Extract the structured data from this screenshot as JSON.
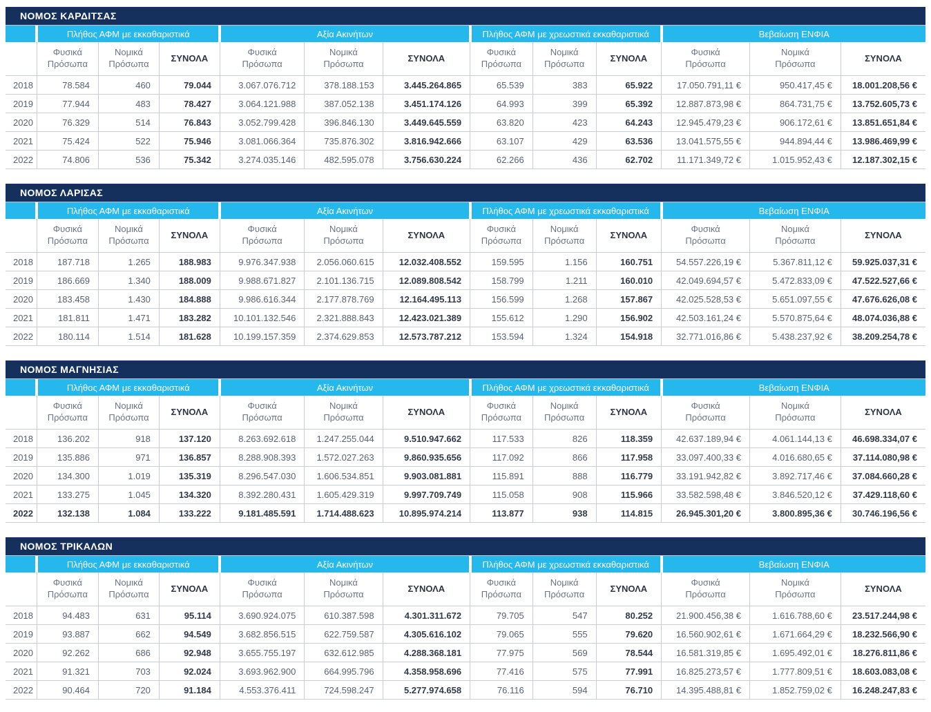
{
  "colors": {
    "title_bar": "#16305e",
    "group_bar": "#25b8ed",
    "grid_line": "#c9ced6",
    "text": "#596270",
    "text_bold": "#333b48"
  },
  "column_groups": [
    {
      "label": "Πλήθος ΑΦΜ με εκκαθαριστικά"
    },
    {
      "label": "Αξία Ακινήτων"
    },
    {
      "label": "Πλήθος ΑΦΜ με χρεωστικά εκκαθαριστικά"
    },
    {
      "label": "Βεβαίωση ΕΝΦΙΑ"
    }
  ],
  "subheaders": {
    "fysika": "Φυσικά Πρόσωπα",
    "nomika": "Νομικά Πρόσωπα",
    "synola": "ΣΥΝΟΛΑ"
  },
  "tables": [
    {
      "title": "ΝΟΜΟΣ ΚΑΡΔΙΤΣΑΣ",
      "rows": [
        {
          "year": "2018",
          "cells": [
            "78.584",
            "460",
            "79.044",
            "3.067.076.712",
            "378.188.153",
            "3.445.264.865",
            "65.539",
            "383",
            "65.922",
            "17.050.791,11 €",
            "950.417,45 €",
            "18.001.208,56 €"
          ]
        },
        {
          "year": "2019",
          "cells": [
            "77.944",
            "483",
            "78.427",
            "3.064.121.988",
            "387.052.138",
            "3.451.174.126",
            "64.993",
            "399",
            "65.392",
            "12.887.873,98 €",
            "864.731,75 €",
            "13.752.605,73 €"
          ]
        },
        {
          "year": "2020",
          "cells": [
            "76.329",
            "514",
            "76.843",
            "3.052.799.428",
            "396.846.130",
            "3.449.645.559",
            "63.820",
            "423",
            "64.243",
            "12.945.479,23 €",
            "906.172,61 €",
            "13.851.651,84 €"
          ]
        },
        {
          "year": "2021",
          "cells": [
            "75.424",
            "522",
            "75.946",
            "3.081.066.364",
            "735.876.302",
            "3.816.942.666",
            "63.107",
            "429",
            "63.536",
            "13.041.575,55 €",
            "944.894,44 €",
            "13.986.469,99 €"
          ]
        },
        {
          "year": "2022",
          "cells": [
            "74.806",
            "536",
            "75.342",
            "3.274.035.146",
            "482.595.078",
            "3.756.630.224",
            "62.266",
            "436",
            "62.702",
            "11.171.349,72 €",
            "1.015.952,43 €",
            "12.187.302,15 €"
          ]
        }
      ]
    },
    {
      "title": "ΝΟΜΟΣ ΛΑΡΙΣΑΣ",
      "rows": [
        {
          "year": "2018",
          "cells": [
            "187.718",
            "1.265",
            "188.983",
            "9.976.347.938",
            "2.056.060.615",
            "12.032.408.552",
            "159.595",
            "1.156",
            "160.751",
            "54.557.226,19 €",
            "5.367.811,12 €",
            "59.925.037,31 €"
          ]
        },
        {
          "year": "2019",
          "cells": [
            "186.669",
            "1.340",
            "188.009",
            "9.988.671.827",
            "2.101.136.715",
            "12.089.808.542",
            "158.799",
            "1.211",
            "160.010",
            "42.049.694,57 €",
            "5.472.833,09 €",
            "47.522.527,66 €"
          ]
        },
        {
          "year": "2020",
          "cells": [
            "183.458",
            "1.430",
            "184.888",
            "9.986.616.344",
            "2.177.878.769",
            "12.164.495.113",
            "156.599",
            "1.268",
            "157.867",
            "42.025.528,53 €",
            "5.651.097,55 €",
            "47.676.626,08 €"
          ]
        },
        {
          "year": "2021",
          "cells": [
            "181.811",
            "1.471",
            "183.282",
            "10.101.132.546",
            "2.321.888.843",
            "12.423.021.389",
            "155.612",
            "1.290",
            "156.902",
            "42.503.161,24 €",
            "5.570.875,64 €",
            "48.074.036,88 €"
          ]
        },
        {
          "year": "2022",
          "cells": [
            "180.114",
            "1.514",
            "181.628",
            "10.199.157.359",
            "2.374.629.853",
            "12.573.787.212",
            "153.594",
            "1.324",
            "154.918",
            "32.771.016,86 €",
            "5.438.237,92 €",
            "38.209.254,78 €"
          ]
        }
      ]
    },
    {
      "title": "ΝΟΜΟΣ ΜΑΓΝΗΣΙΑΣ",
      "rows": [
        {
          "year": "2018",
          "cells": [
            "136.202",
            "918",
            "137.120",
            "8.263.692.618",
            "1.247.255.044",
            "9.510.947.662",
            "117.533",
            "826",
            "118.359",
            "42.637.189,94 €",
            "4.061.144,13 €",
            "46.698.334,07 €"
          ]
        },
        {
          "year": "2019",
          "cells": [
            "135.886",
            "971",
            "136.857",
            "8.288.908.393",
            "1.572.027.263",
            "9.860.935.656",
            "117.092",
            "866",
            "117.958",
            "33.097.400,33 €",
            "4.016.680,65 €",
            "37.114.080,98 €"
          ]
        },
        {
          "year": "2020",
          "cells": [
            "134.300",
            "1.019",
            "135.319",
            "8.296.547.030",
            "1.606.534.851",
            "9.903.081.881",
            "115.891",
            "888",
            "116.779",
            "33.191.942,82 €",
            "3.892.717,46 €",
            "37.084.660,28 €"
          ]
        },
        {
          "year": "2021",
          "cells": [
            "133.275",
            "1.045",
            "134.320",
            "8.392.280.431",
            "1.605.429.319",
            "9.997.709.749",
            "115.058",
            "908",
            "115.966",
            "33.582.598,48 €",
            "3.846.520,12 €",
            "37.429.118,60 €"
          ]
        },
        {
          "year": "2022",
          "bold": true,
          "cells": [
            "132.138",
            "1.084",
            "133.222",
            "9.181.485.591",
            "1.714.488.623",
            "10.895.974.214",
            "113.877",
            "938",
            "114.815",
            "26.945.301,20 €",
            "3.800.895,36 €",
            "30.746.196,56 €"
          ]
        }
      ]
    },
    {
      "title": "ΝΟΜΟΣ ΤΡΙΚΑΛΩΝ",
      "rows": [
        {
          "year": "2018",
          "cells": [
            "94.483",
            "631",
            "95.114",
            "3.690.924.075",
            "610.387.598",
            "4.301.311.672",
            "79.705",
            "547",
            "80.252",
            "21.900.456,38 €",
            "1.616.788,60 €",
            "23.517.244,98 €"
          ]
        },
        {
          "year": "2019",
          "cells": [
            "93.887",
            "662",
            "94.549",
            "3.682.856.515",
            "622.759.587",
            "4.305.616.102",
            "79.065",
            "555",
            "79.620",
            "16.560.902,61 €",
            "1.671.664,29 €",
            "18.232.566,90 €"
          ]
        },
        {
          "year": "2020",
          "cells": [
            "92.262",
            "686",
            "92.948",
            "3.655.755.197",
            "632.612.985",
            "4.288.368.181",
            "77.975",
            "569",
            "78.544",
            "16.581.319,85 €",
            "1.695.492,01 €",
            "18.276.811,86 €"
          ]
        },
        {
          "year": "2021",
          "cells": [
            "91.321",
            "703",
            "92.024",
            "3.693.962.900",
            "664.995.796",
            "4.358.958.696",
            "77.416",
            "575",
            "77.991",
            "16.825.273,57 €",
            "1.777.809,51 €",
            "18.603.083,08 €"
          ]
        },
        {
          "year": "2022",
          "cells": [
            "90.464",
            "720",
            "91.184",
            "4.553.376.411",
            "724.598.247",
            "5.277.974.658",
            "76.116",
            "594",
            "76.710",
            "14.395.488,81 €",
            "1.852.759,02 €",
            "16.248.247,83 €"
          ]
        }
      ]
    }
  ]
}
